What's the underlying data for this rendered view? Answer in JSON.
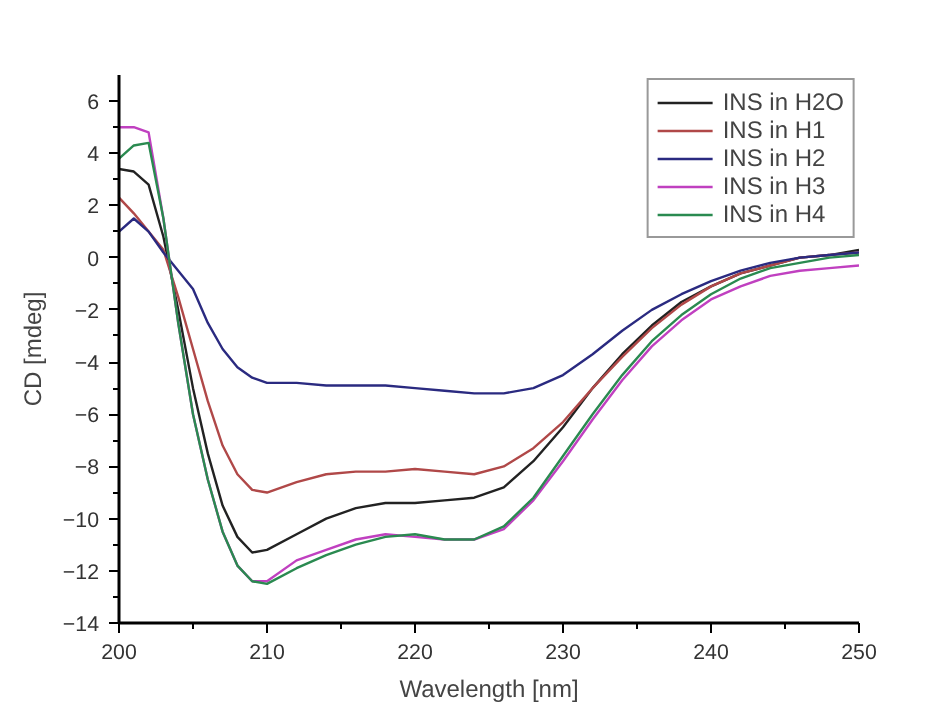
{
  "chart_data": {
    "type": "line",
    "xlabel": "Wavelength [nm]",
    "ylabel": "CD [mdeg]",
    "x": [
      200,
      201,
      202,
      203,
      204,
      205,
      206,
      207,
      208,
      209,
      210,
      212,
      214,
      216,
      218,
      220,
      222,
      224,
      226,
      228,
      230,
      232,
      234,
      236,
      238,
      240,
      242,
      244,
      246,
      248,
      250
    ],
    "series": [
      {
        "name": "INS in H2O",
        "color": "#222222",
        "values": [
          3.4,
          3.3,
          2.8,
          0.8,
          -2,
          -5,
          -7.5,
          -9.5,
          -10.7,
          -11.3,
          -11.2,
          -10.6,
          -10,
          -9.6,
          -9.4,
          -9.4,
          -9.3,
          -9.2,
          -8.8,
          -7.8,
          -6.5,
          -5.0,
          -3.7,
          -2.6,
          -1.7,
          -1.1,
          -0.6,
          -0.3,
          0,
          0.1,
          0.3
        ]
      },
      {
        "name": "INS in H1",
        "color": "#b04848",
        "values": [
          2.3,
          1.7,
          1.0,
          0.3,
          -1.5,
          -3.5,
          -5.5,
          -7.2,
          -8.3,
          -8.9,
          -9.0,
          -8.6,
          -8.3,
          -8.2,
          -8.2,
          -8.1,
          -8.2,
          -8.3,
          -8.0,
          -7.3,
          -6.3,
          -5.0,
          -3.8,
          -2.7,
          -1.8,
          -1.1,
          -0.6,
          -0.3,
          0,
          0.1,
          0.2
        ]
      },
      {
        "name": "INS in H2",
        "color": "#2a2a80",
        "values": [
          1.0,
          1.5,
          1.0,
          0.2,
          -0.5,
          -1.2,
          -2.5,
          -3.5,
          -4.2,
          -4.6,
          -4.8,
          -4.8,
          -4.9,
          -4.9,
          -4.9,
          -5.0,
          -5.1,
          -5.2,
          -5.2,
          -5.0,
          -4.5,
          -3.7,
          -2.8,
          -2.0,
          -1.4,
          -0.9,
          -0.5,
          -0.2,
          0,
          0.1,
          0.2
        ]
      },
      {
        "name": "INS in H3",
        "color": "#c040c0",
        "values": [
          5.0,
          5.0,
          4.8,
          1.5,
          -2.5,
          -6,
          -8.5,
          -10.5,
          -11.8,
          -12.4,
          -12.4,
          -11.6,
          -11.2,
          -10.8,
          -10.6,
          -10.7,
          -10.8,
          -10.8,
          -10.4,
          -9.3,
          -7.8,
          -6.2,
          -4.7,
          -3.4,
          -2.4,
          -1.6,
          -1.1,
          -0.7,
          -0.5,
          -0.4,
          -0.3
        ]
      },
      {
        "name": "INS in H4",
        "color": "#2a8a50",
        "values": [
          3.8,
          4.3,
          4.4,
          1.5,
          -2.5,
          -6,
          -8.5,
          -10.5,
          -11.8,
          -12.4,
          -12.5,
          -11.9,
          -11.4,
          -11.0,
          -10.7,
          -10.6,
          -10.8,
          -10.8,
          -10.3,
          -9.2,
          -7.6,
          -6.0,
          -4.5,
          -3.2,
          -2.2,
          -1.4,
          -0.8,
          -0.4,
          -0.2,
          0,
          0.1
        ]
      }
    ],
    "xlim": [
      200,
      250
    ],
    "ylim": [
      -14,
      7
    ],
    "xticks": [
      200,
      210,
      220,
      230,
      240,
      250
    ],
    "yticks": [
      -14,
      -12,
      -10,
      -8,
      -6,
      -4,
      -2,
      0,
      2,
      4,
      6
    ],
    "grid": false,
    "legend": "top right",
    "marker": "none",
    "line_style": "solid"
  }
}
